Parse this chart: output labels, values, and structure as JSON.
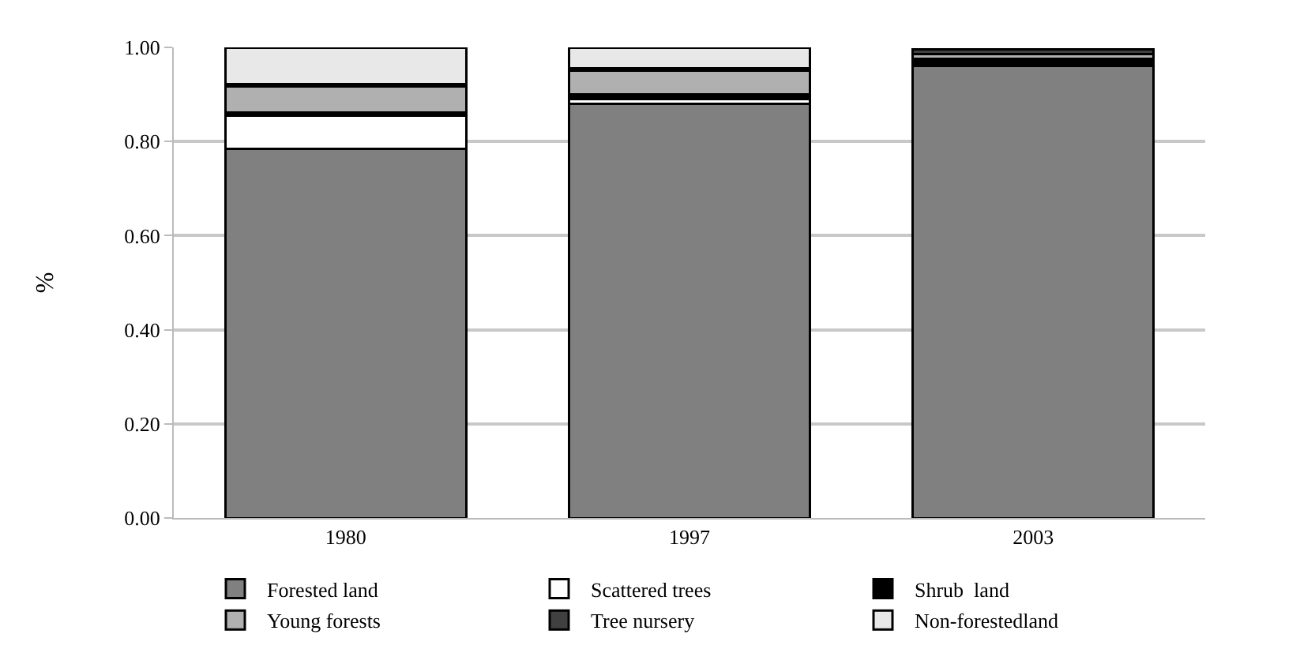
{
  "chart_data": {
    "type": "bar",
    "stacked": true,
    "ylabel": "%",
    "categories": [
      "1980",
      "1997",
      "2003"
    ],
    "series": [
      {
        "name": "Forested land",
        "color": "#808080",
        "values": [
          0.785,
          0.88,
          0.96
        ]
      },
      {
        "name": "Scattered trees",
        "color": "#ffffff",
        "values": [
          0.07,
          0.01,
          0.005
        ]
      },
      {
        "name": "Shrub  land",
        "color": "#000000",
        "values": [
          0.007,
          0.01,
          0.01
        ]
      },
      {
        "name": "Young forests",
        "color": "#b0b0b0",
        "values": [
          0.055,
          0.05,
          0.01
        ]
      },
      {
        "name": "Tree nursery",
        "color": "#404040",
        "values": [
          0.005,
          0.005,
          0.01
        ]
      },
      {
        "name": "Non-forestedland",
        "color": "#e8e8e8",
        "values": [
          0.078,
          0.045,
          null
        ]
      }
    ],
    "ylim": [
      0,
      1
    ],
    "yticks": [
      {
        "value": 0,
        "label": "0.00"
      },
      {
        "value": 0.2,
        "label": "0.20"
      },
      {
        "value": 0.4,
        "label": "0.40"
      },
      {
        "value": 0.6,
        "label": "0.60"
      },
      {
        "value": 0.8,
        "label": "0.80"
      },
      {
        "value": 1,
        "label": "1.00"
      }
    ],
    "grid": "y",
    "legend": "bottom"
  }
}
